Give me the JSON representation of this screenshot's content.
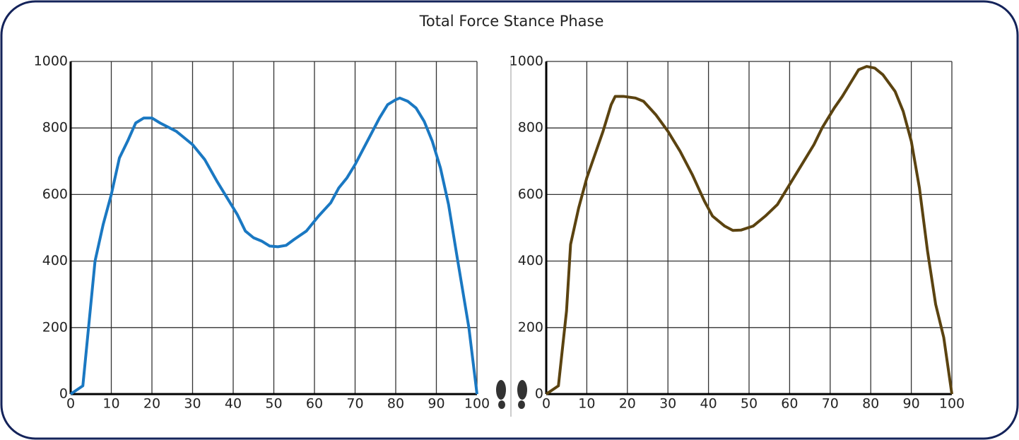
{
  "title": "Total Force Stance Phase",
  "chart_data": [
    {
      "type": "line",
      "color": "#1a78c2",
      "grid": true,
      "xlim": [
        0,
        100
      ],
      "ylim": [
        0,
        1000
      ],
      "xticks": [
        0,
        10,
        20,
        30,
        40,
        50,
        60,
        70,
        80,
        90,
        100
      ],
      "yticks": [
        0,
        200,
        400,
        600,
        800,
        1000
      ],
      "x": [
        0,
        3,
        6,
        8,
        10,
        12,
        14,
        16,
        18,
        20,
        22,
        26,
        30,
        33,
        36,
        38,
        41,
        43,
        45,
        47,
        49,
        51,
        53,
        55,
        58,
        61,
        64,
        66,
        68,
        70,
        73,
        76,
        78,
        80,
        81,
        83,
        85,
        87,
        89,
        91,
        93,
        95,
        98,
        100
      ],
      "values": [
        0,
        25,
        400,
        510,
        600,
        710,
        760,
        815,
        830,
        830,
        815,
        790,
        750,
        705,
        640,
        600,
        540,
        490,
        470,
        460,
        445,
        443,
        447,
        465,
        490,
        535,
        575,
        620,
        650,
        690,
        760,
        830,
        870,
        885,
        890,
        880,
        860,
        820,
        760,
        680,
        570,
        420,
        200,
        0
      ]
    },
    {
      "type": "line",
      "color": "#5b4310",
      "grid": true,
      "xlim": [
        0,
        100
      ],
      "ylim": [
        0,
        1000
      ],
      "xticks": [
        0,
        10,
        20,
        30,
        40,
        50,
        60,
        70,
        80,
        90,
        100
      ],
      "yticks": [
        0,
        200,
        400,
        600,
        800,
        1000
      ],
      "x": [
        0,
        3,
        5,
        6,
        8,
        10,
        12,
        14,
        16,
        17,
        19,
        22,
        24,
        27,
        30,
        33,
        36,
        39,
        41,
        44,
        46,
        48,
        51,
        54,
        57,
        59,
        62,
        66,
        68,
        71,
        73,
        75,
        77,
        79,
        81,
        83,
        86,
        88,
        90,
        92,
        94,
        96,
        98,
        100
      ],
      "values": [
        0,
        25,
        250,
        450,
        560,
        650,
        720,
        790,
        870,
        895,
        895,
        890,
        880,
        840,
        790,
        730,
        660,
        580,
        535,
        505,
        492,
        493,
        505,
        535,
        570,
        610,
        670,
        750,
        800,
        860,
        895,
        935,
        975,
        985,
        980,
        960,
        910,
        850,
        760,
        620,
        430,
        270,
        170,
        0
      ]
    }
  ]
}
